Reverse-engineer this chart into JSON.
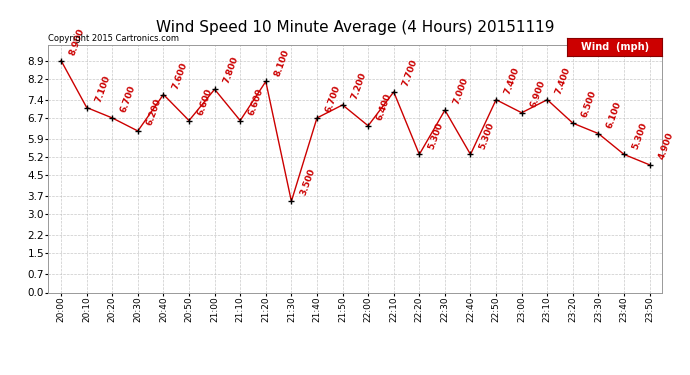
{
  "title": "Wind Speed 10 Minute Average (4 Hours) 20151119",
  "copyright": "Copyright 2015 Cartronics.com",
  "legend_label": "Wind  (mph)",
  "x_labels": [
    "20:00",
    "20:10",
    "20:20",
    "20:30",
    "20:40",
    "20:50",
    "21:00",
    "21:10",
    "21:20",
    "21:30",
    "21:40",
    "21:50",
    "22:00",
    "22:10",
    "22:20",
    "22:30",
    "22:40",
    "22:50",
    "23:00",
    "23:10",
    "23:20",
    "23:30",
    "23:40",
    "23:50"
  ],
  "wind_values": [
    8.9,
    7.1,
    6.7,
    6.2,
    7.6,
    6.6,
    7.8,
    6.6,
    8.1,
    3.5,
    6.7,
    7.2,
    6.4,
    7.7,
    5.3,
    7.0,
    5.3,
    7.4,
    6.9,
    7.4,
    6.5,
    6.1,
    5.3,
    4.9
  ],
  "y_ticks": [
    0.0,
    0.7,
    1.5,
    2.2,
    3.0,
    3.7,
    4.5,
    5.2,
    5.9,
    6.7,
    7.4,
    8.2,
    8.9
  ],
  "ylim": [
    0.0,
    9.5
  ],
  "line_color": "#cc0000",
  "marker_color": "#000000",
  "bg_color": "#ffffff",
  "grid_color": "#bbbbbb",
  "title_fontsize": 11,
  "annotation_fontsize": 6.5,
  "legend_bg": "#cc0000",
  "legend_fg": "#ffffff",
  "legend_fontsize": 7,
  "copyright_fontsize": 6,
  "ytick_fontsize": 7.5,
  "xtick_fontsize": 6.5
}
